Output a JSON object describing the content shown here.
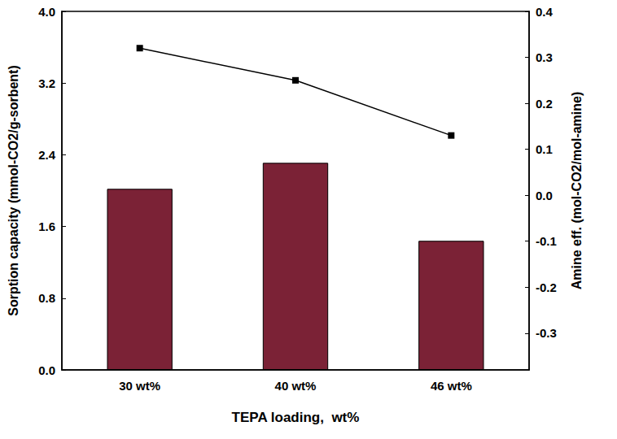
{
  "chart_data": {
    "type": "bar",
    "x_label": "TEPA loading,  wt%",
    "y_label": "Sorption capacity (mmol-CO2/g-sorbent)",
    "y2_label": "Amine eff. (mol-CO2/mol-amine)",
    "categories": [
      "30 wt%",
      "40 wt%",
      "46 wt%"
    ],
    "series": [
      {
        "name": "Sorption capacity",
        "type": "bar",
        "color": "#7b2236",
        "values": [
          2.02,
          2.31,
          1.44
        ]
      },
      {
        "name": "Amine eff.",
        "type": "line",
        "axis": "y2",
        "color": "#000000",
        "marker": "square",
        "line_style": "solid",
        "values": [
          0.32,
          0.25,
          0.13
        ]
      }
    ],
    "ylim": [
      0,
      4.0
    ],
    "yticks": [
      {
        "value": 0,
        "label": "0.0"
      },
      0.8,
      1.6,
      2.4,
      3.2,
      {
        "value": 4,
        "label": "4.0"
      }
    ],
    "y2lim": [
      -0.38,
      0.4
    ],
    "y2ticks": [
      -0.3,
      -0.2,
      -0.1,
      {
        "value": 0,
        "label": "0.0"
      },
      0.1,
      0.2,
      0.3,
      0.4
    ],
    "grid": false
  }
}
